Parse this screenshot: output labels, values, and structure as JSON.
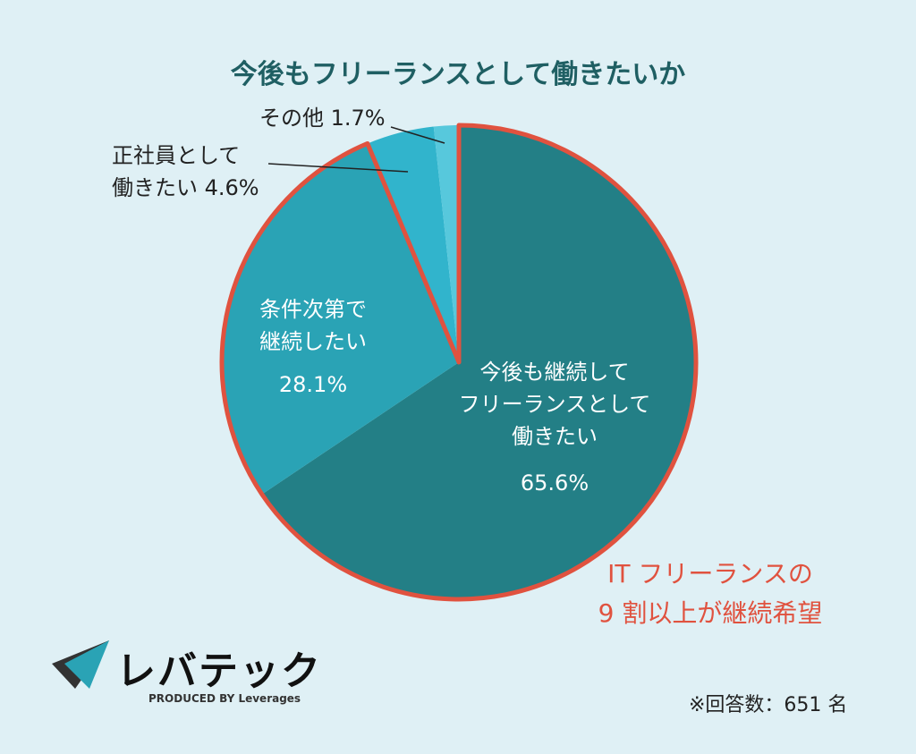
{
  "chart_data": {
    "type": "pie",
    "title": "今後もフリーランスとして働きたいか",
    "categories": [
      "今後も継続して\nフリーランスとして\n働きたい",
      "条件次第で\n継続したい",
      "正社員として\n働きたい",
      "その他"
    ],
    "values": [
      65.6,
      28.1,
      4.6,
      1.7
    ],
    "value_labels": [
      "65.6%",
      "28.1%",
      "4.6%",
      "1.7%"
    ],
    "colors": [
      "#237f86",
      "#2aa3b5",
      "#31b4cc",
      "#57c8dc"
    ],
    "highlight_color": "#e0523f",
    "annotation": "IT フリーランスの\n9 割以上が継続希望",
    "note": "※回答数：651 名"
  },
  "logo": {
    "name": "レバテック",
    "tagline": "PRODUCED BY Leverages"
  }
}
